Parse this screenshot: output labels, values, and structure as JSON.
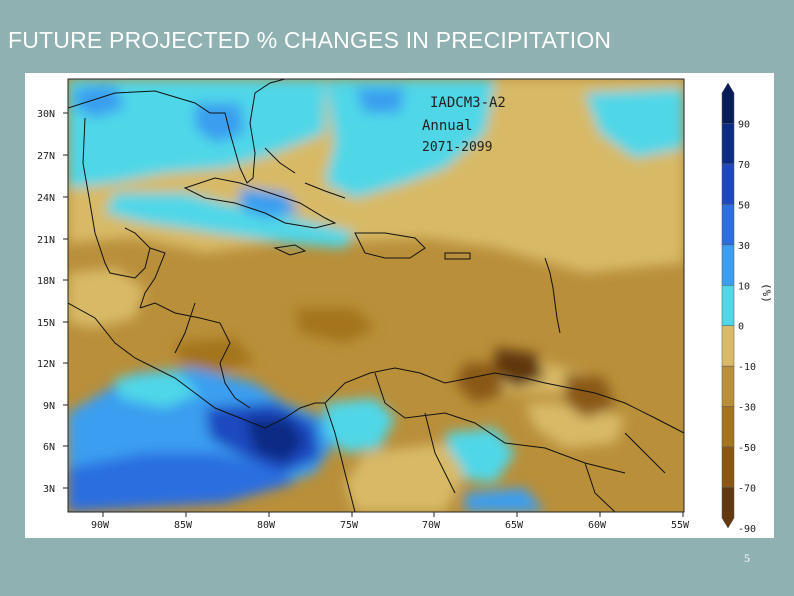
{
  "slide": {
    "title": "FUTURE PROJECTED % CHANGES IN PRECIPITATION",
    "page_number": "5"
  },
  "map": {
    "model_label": "IADCM3-A2",
    "period_label": "Annual",
    "years_label": "2071-2099",
    "lat_labels": [
      "30N",
      "27N",
      "24N",
      "21N",
      "18N",
      "15N",
      "12N",
      "9N",
      "6N",
      "3N"
    ],
    "lon_labels": [
      "90W",
      "85W",
      "80W",
      "75W",
      "70W",
      "65W",
      "60W",
      "55W"
    ],
    "colorbar": {
      "unit": "(%)",
      "labels": [
        "90",
        "70",
        "50",
        "30",
        "10",
        "0",
        "-10",
        "-30",
        "-50",
        "-70",
        "-90"
      ],
      "colors": [
        "#081d58",
        "#0c2c84",
        "#1d48c0",
        "#2c6ee0",
        "#3b9ef0",
        "#4fd7e8",
        "#d8ba66",
        "#b98f3a",
        "#a4741f",
        "#8a5812",
        "#613810"
      ]
    }
  }
}
